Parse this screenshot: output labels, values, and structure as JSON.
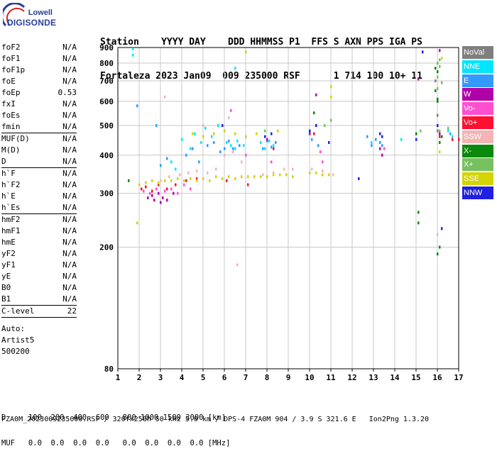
{
  "logo": {
    "top": "Lowell",
    "bottom": "DIGISONDE"
  },
  "header": {
    "line1": "Station    YYYY DAY    DDD HHMMSS P1  FFS S AXN PPS IGA PS",
    "line2": "Fortaleza 2023 Jan09  009 235000 RSF      1 714 100 10+ 11"
  },
  "params": {
    "group1": [
      {
        "name": "foF2",
        "value": "N/A"
      },
      {
        "name": "foF1",
        "value": "N/A"
      },
      {
        "name": "foF1p",
        "value": "N/A"
      },
      {
        "name": "foE",
        "value": "N/A"
      },
      {
        "name": "foEp",
        "value": "0.53"
      },
      {
        "name": "fxI",
        "value": "N/A"
      },
      {
        "name": "foEs",
        "value": "N/A"
      },
      {
        "name": "fmin",
        "value": "N/A"
      }
    ],
    "group2": [
      {
        "name": "MUF(D)",
        "value": "N/A"
      },
      {
        "name": "M(D)",
        "value": "N/A"
      },
      {
        "name": "D",
        "value": "N/A"
      }
    ],
    "group3": [
      {
        "name": "h`F",
        "value": "N/A"
      },
      {
        "name": "h`F2",
        "value": "N/A"
      },
      {
        "name": "h`E",
        "value": "N/A"
      },
      {
        "name": "h`Es",
        "value": "N/A"
      }
    ],
    "group4": [
      {
        "name": "hmF2",
        "value": "N/A"
      },
      {
        "name": "hmF1",
        "value": "N/A"
      },
      {
        "name": "hmE",
        "value": "N/A"
      },
      {
        "name": "yF2",
        "value": "N/A"
      },
      {
        "name": "yF1",
        "value": "N/A"
      },
      {
        "name": "yE",
        "value": "N/A"
      },
      {
        "name": "B0",
        "value": "N/A"
      },
      {
        "name": "B1",
        "value": "N/A"
      }
    ],
    "group5": [
      {
        "name": "C-level",
        "value": "22"
      }
    ],
    "auto": [
      "Auto:",
      "Artist5",
      "500200"
    ]
  },
  "legend": [
    {
      "label": "NoVal",
      "color": "#7f7f7f"
    },
    {
      "label": "NNE",
      "color": "#00e5ff"
    },
    {
      "label": "E",
      "color": "#3399ff"
    },
    {
      "label": "W",
      "color": "#b000a8"
    },
    {
      "label": "Vo-",
      "color": "#ff4fd0"
    },
    {
      "label": "Vo+",
      "color": "#ff1030"
    },
    {
      "label": "SSW",
      "color": "#f4b4b4"
    },
    {
      "label": "X-",
      "color": "#0a8a0a"
    },
    {
      "label": "X+",
      "color": "#77c060"
    },
    {
      "label": "SSE",
      "color": "#d4d400"
    },
    {
      "label": "NNW",
      "color": "#2020e0"
    }
  ],
  "footer": {
    "row1": "D     100  200  400  600   800 1000 1500 3000 [km]",
    "row2": "MUF   0.0  0.0  0.0  0.0   0.0  0.0  0.0  0.0 [MHz]",
    "row3": "FZA0M_2023009235000.RSF / 320fx256h 50 kHz 5.0 km / DPS-4 FZA0M 904 / 3.9 S 321.6 E   Ion2Png 1.3.20"
  },
  "chart_data": {
    "type": "scatter",
    "title": "",
    "xlabel": "",
    "ylabel": "",
    "xlim": [
      1,
      17
    ],
    "ylim": [
      80,
      900
    ],
    "x_ticks": [
      1,
      2,
      3,
      4,
      5,
      6,
      7,
      8,
      9,
      10,
      11,
      12,
      13,
      14,
      15,
      16,
      17
    ],
    "y_ticks": [
      80,
      200,
      300,
      400,
      500,
      600,
      700,
      800,
      900
    ],
    "y_scale": "log",
    "grid": true,
    "legend_position": "right",
    "series": [
      {
        "name": "NoVal",
        "points": [
          [
            16.0,
            540
          ],
          [
            16.0,
            480
          ],
          [
            15.9,
            700
          ]
        ]
      },
      {
        "name": "NNE",
        "points": [
          [
            1.7,
            890
          ],
          [
            1.7,
            850
          ],
          [
            6.1,
            440
          ],
          [
            6.3,
            430
          ],
          [
            6.5,
            420
          ],
          [
            6.6,
            445
          ],
          [
            6.9,
            430
          ],
          [
            7.7,
            440
          ],
          [
            7.9,
            420
          ],
          [
            8.1,
            445
          ],
          [
            8.3,
            430
          ],
          [
            4.0,
            450
          ],
          [
            4.4,
            420
          ],
          [
            4.6,
            470
          ],
          [
            4.9,
            440
          ],
          [
            5.1,
            490
          ],
          [
            5.4,
            460
          ],
          [
            5.7,
            500
          ],
          [
            16.5,
            480
          ],
          [
            16.7,
            460
          ],
          [
            12.9,
            440
          ],
          [
            14.3,
            450
          ],
          [
            6.5,
            770
          ],
          [
            3.5,
            380
          ],
          [
            3.7,
            360
          ]
        ]
      },
      {
        "name": "E",
        "points": [
          [
            6.0,
            420
          ],
          [
            6.2,
            445
          ],
          [
            6.4,
            420
          ],
          [
            6.7,
            430
          ],
          [
            7.8,
            420
          ],
          [
            8.0,
            445
          ],
          [
            8.2,
            425
          ],
          [
            8.4,
            440
          ],
          [
            10.1,
            450
          ],
          [
            10.4,
            430
          ],
          [
            13.3,
            440
          ],
          [
            13.4,
            430
          ],
          [
            4.2,
            400
          ],
          [
            4.5,
            420
          ],
          [
            4.8,
            380
          ],
          [
            5.2,
            430
          ],
          [
            5.5,
            440
          ],
          [
            5.8,
            410
          ],
          [
            3.0,
            370
          ],
          [
            3.3,
            390
          ],
          [
            1.9,
            580
          ],
          [
            2.8,
            500
          ],
          [
            16.6,
            470
          ],
          [
            13.1,
            450
          ],
          [
            12.9,
            430
          ],
          [
            12.7,
            460
          ]
        ]
      },
      {
        "name": "W",
        "points": [
          [
            2.4,
            290
          ],
          [
            2.7,
            285
          ],
          [
            3.0,
            280
          ],
          [
            3.3,
            285
          ],
          [
            2.9,
            300
          ],
          [
            3.1,
            290
          ],
          [
            3.6,
            300
          ],
          [
            2.6,
            295
          ],
          [
            10.3,
            630
          ],
          [
            13.4,
            400
          ],
          [
            13.3,
            420
          ],
          [
            8.0,
            450
          ],
          [
            10.0,
            470
          ],
          [
            16.1,
            880
          ],
          [
            16.1,
            470
          ],
          [
            15.1,
            710
          ]
        ]
      },
      {
        "name": "Vo-",
        "points": [
          [
            2.2,
            305
          ],
          [
            2.5,
            300
          ],
          [
            2.8,
            310
          ],
          [
            3.2,
            305
          ],
          [
            3.5,
            310
          ],
          [
            3.8,
            300
          ],
          [
            4.1,
            320
          ],
          [
            4.4,
            310
          ],
          [
            6.3,
            560
          ],
          [
            7.0,
            400
          ],
          [
            8.2,
            380
          ],
          [
            10.5,
            410
          ],
          [
            10.6,
            380
          ],
          [
            13.5,
            420
          ]
        ]
      },
      {
        "name": "Vo+",
        "points": [
          [
            2.1,
            310
          ],
          [
            2.3,
            315
          ],
          [
            2.6,
            305
          ],
          [
            2.9,
            320
          ],
          [
            3.3,
            310
          ],
          [
            3.7,
            320
          ],
          [
            4.2,
            330
          ],
          [
            4.7,
            335
          ],
          [
            6.1,
            330
          ],
          [
            7.1,
            320
          ],
          [
            8.3,
            420
          ],
          [
            10.2,
            470
          ],
          [
            16.1,
            460
          ],
          [
            17.0,
            450
          ],
          [
            16.7,
            450
          ]
        ]
      },
      {
        "name": "SSW",
        "points": [
          [
            3.0,
            330
          ],
          [
            3.4,
            340
          ],
          [
            3.9,
            345
          ],
          [
            4.3,
            350
          ],
          [
            4.7,
            355
          ],
          [
            5.2,
            350
          ],
          [
            5.6,
            360
          ],
          [
            6.0,
            400
          ],
          [
            6.4,
            410
          ],
          [
            6.8,
            380
          ],
          [
            7.4,
            340
          ],
          [
            7.8,
            345
          ],
          [
            8.3,
            350
          ],
          [
            8.8,
            360
          ],
          [
            9.2,
            360
          ],
          [
            10.1,
            360
          ],
          [
            10.6,
            355
          ],
          [
            11.1,
            345
          ],
          [
            3.2,
            620
          ],
          [
            5.0,
            500
          ],
          [
            6.2,
            530
          ],
          [
            16.0,
            220
          ],
          [
            6.6,
            175
          ]
        ]
      },
      {
        "name": "X-",
        "points": [
          [
            10.2,
            550
          ],
          [
            16.0,
            600
          ],
          [
            16.0,
            610
          ],
          [
            15.9,
            650
          ],
          [
            15.9,
            770
          ],
          [
            16.0,
            750
          ],
          [
            16.1,
            200
          ],
          [
            16.0,
            190
          ],
          [
            15.1,
            260
          ],
          [
            15.1,
            240
          ],
          [
            16.2,
            460
          ],
          [
            16.1,
            440
          ],
          [
            15.0,
            470
          ],
          [
            1.5,
            330
          ]
        ]
      },
      {
        "name": "X+",
        "points": [
          [
            16.0,
            660
          ],
          [
            16.0,
            800
          ],
          [
            16.1,
            820
          ],
          [
            16.1,
            780
          ],
          [
            16.0,
            720
          ],
          [
            16.2,
            690
          ],
          [
            16.1,
            480
          ],
          [
            15.2,
            480
          ],
          [
            16.5,
            490
          ],
          [
            10.7,
            500
          ],
          [
            11.0,
            520
          ],
          [
            7.9,
            480
          ]
        ]
      },
      {
        "name": "SSE",
        "points": [
          [
            2.0,
            320
          ],
          [
            2.3,
            325
          ],
          [
            2.6,
            330
          ],
          [
            2.9,
            325
          ],
          [
            3.2,
            330
          ],
          [
            3.5,
            330
          ],
          [
            3.8,
            335
          ],
          [
            4.1,
            330
          ],
          [
            4.4,
            335
          ],
          [
            4.7,
            330
          ],
          [
            5.0,
            335
          ],
          [
            5.3,
            330
          ],
          [
            5.6,
            340
          ],
          [
            5.9,
            335
          ],
          [
            6.2,
            340
          ],
          [
            6.5,
            335
          ],
          [
            6.8,
            340
          ],
          [
            7.1,
            340
          ],
          [
            7.4,
            340
          ],
          [
            7.7,
            340
          ],
          [
            8.0,
            340
          ],
          [
            8.3,
            345
          ],
          [
            8.6,
            345
          ],
          [
            8.9,
            345
          ],
          [
            9.2,
            340
          ],
          [
            10.0,
            350
          ],
          [
            10.3,
            350
          ],
          [
            10.6,
            345
          ],
          [
            10.9,
            345
          ],
          [
            4.5,
            470
          ],
          [
            5.0,
            460
          ],
          [
            5.5,
            470
          ],
          [
            6.0,
            480
          ],
          [
            6.5,
            470
          ],
          [
            7.0,
            460
          ],
          [
            7.5,
            470
          ],
          [
            8.5,
            480
          ],
          [
            11.0,
            670
          ],
          [
            11.0,
            620
          ],
          [
            7.0,
            870
          ],
          [
            1.9,
            240
          ],
          [
            16.2,
            830
          ],
          [
            16.1,
            410
          ]
        ]
      },
      {
        "name": "NNW",
        "points": [
          [
            7.9,
            460
          ],
          [
            8.2,
            470
          ],
          [
            10.0,
            480
          ],
          [
            10.3,
            500
          ],
          [
            13.4,
            460
          ],
          [
            13.3,
            470
          ],
          [
            12.3,
            335
          ],
          [
            15.3,
            870
          ],
          [
            16.2,
            230
          ],
          [
            5.9,
            500
          ],
          [
            16.0,
            500
          ],
          [
            15.0,
            450
          ],
          [
            10.9,
            440
          ]
        ]
      }
    ]
  }
}
